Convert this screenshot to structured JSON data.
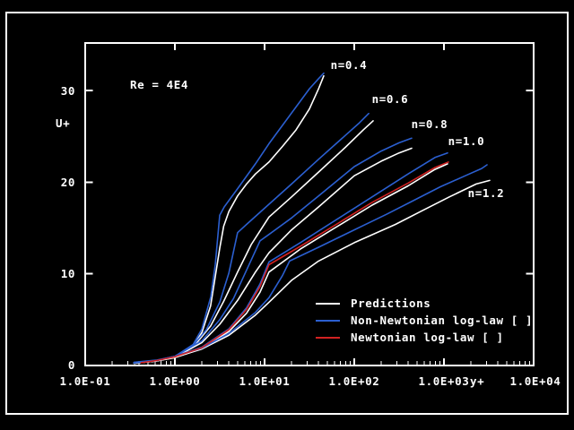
{
  "window": {
    "background": "#000000",
    "border_color": "#ffffff"
  },
  "colors": {
    "background": "#000000",
    "frame": "#ffffff",
    "text": "#ffffff",
    "predictions": "#ffffff",
    "non_newtonian": "#2b5fd0",
    "newtonian": "#d22222"
  },
  "chart_data": {
    "type": "line",
    "title": "Re = 4E4",
    "xlabel": "y+",
    "ylabel": "U+",
    "x_scale": "log",
    "grid": false,
    "xlim": [
      0.1,
      10000
    ],
    "ylim": [
      0,
      35.2
    ],
    "legend_position": "lower-right-inside",
    "x_ticks": [
      {
        "label": "1.0E-01",
        "value": 0.1
      },
      {
        "label": "1.0E+00",
        "value": 1
      },
      {
        "label": "1.0E+01",
        "value": 10
      },
      {
        "label": "1.0E+02",
        "value": 100
      },
      {
        "label": "1.0E+03",
        "value": 1000
      },
      {
        "label": "1.0E+04",
        "value": 10000
      }
    ],
    "y_ticks": [
      {
        "label": "0",
        "value": 0
      },
      {
        "label": "10",
        "value": 10
      },
      {
        "label": "20",
        "value": 20
      },
      {
        "label": "30",
        "value": 30
      }
    ],
    "legend": {
      "entries": [
        {
          "label": "Predictions",
          "color_key": "predictions"
        },
        {
          "label": "Non-Newtonian log-law [ ]",
          "color_key": "non_newtonian"
        },
        {
          "label": "Newtonian log-law [ ]",
          "color_key": "newtonian"
        }
      ]
    },
    "curve_labels": [
      {
        "text": "n=0.4",
        "y_plus": 87,
        "u_plus": 32.7
      },
      {
        "text": "n=0.6",
        "y_plus": 251,
        "u_plus": 29.0
      },
      {
        "text": "n=0.8",
        "y_plus": 692,
        "u_plus": 26.3
      },
      {
        "text": "n=1.0",
        "y_plus": 1778,
        "u_plus": 24.4
      },
      {
        "text": "n=1.2",
        "y_plus": 2951,
        "u_plus": 18.8
      }
    ],
    "series": [
      {
        "name": "prediction-n0.4",
        "legend": "Predictions",
        "color_key": "predictions",
        "n": 0.4,
        "points": [
          [
            0.35,
            0.25
          ],
          [
            0.63,
            0.5
          ],
          [
            1,
            0.9
          ],
          [
            1.6,
            2.1
          ],
          [
            2,
            3.6
          ],
          [
            2.5,
            6.5
          ],
          [
            2.8,
            9.5
          ],
          [
            3.16,
            12.8
          ],
          [
            3.5,
            15.2
          ],
          [
            4,
            16.8
          ],
          [
            5,
            18.5
          ],
          [
            6.3,
            19.8
          ],
          [
            7.9,
            20.9
          ],
          [
            11.2,
            22.2
          ],
          [
            15.8,
            23.9
          ],
          [
            22.4,
            25.7
          ],
          [
            31.6,
            28.0
          ],
          [
            40,
            30.2
          ],
          [
            45.7,
            31.6
          ]
        ]
      },
      {
        "name": "prediction-n0.6",
        "legend": "Predictions",
        "color_key": "predictions",
        "n": 0.6,
        "points": [
          [
            0.35,
            0.25
          ],
          [
            0.63,
            0.5
          ],
          [
            1,
            0.9
          ],
          [
            1.6,
            2.0
          ],
          [
            2.5,
            4.3
          ],
          [
            3.5,
            7.0
          ],
          [
            5,
            10.2
          ],
          [
            7.1,
            13.2
          ],
          [
            11.2,
            16.2
          ],
          [
            20,
            18.4
          ],
          [
            40,
            21.1
          ],
          [
            79.4,
            23.8
          ],
          [
            126,
            25.7
          ],
          [
            162,
            26.7
          ]
        ]
      },
      {
        "name": "prediction-n0.8",
        "legend": "Predictions",
        "color_key": "predictions",
        "n": 0.8,
        "points": [
          [
            0.35,
            0.25
          ],
          [
            0.63,
            0.5
          ],
          [
            1,
            0.9
          ],
          [
            2,
            2.5
          ],
          [
            3.16,
            4.5
          ],
          [
            5,
            7.1
          ],
          [
            7.9,
            10.2
          ],
          [
            11.2,
            12.3
          ],
          [
            20,
            14.8
          ],
          [
            40,
            17.3
          ],
          [
            100,
            20.7
          ],
          [
            200,
            22.3
          ],
          [
            316,
            23.2
          ],
          [
            437,
            23.7
          ]
        ]
      },
      {
        "name": "prediction-n1.0",
        "legend": "Predictions",
        "color_key": "predictions",
        "n": 1.0,
        "points": [
          [
            0.35,
            0.25
          ],
          [
            0.63,
            0.5
          ],
          [
            1,
            0.85
          ],
          [
            2,
            1.85
          ],
          [
            4,
            3.7
          ],
          [
            6.3,
            5.7
          ],
          [
            8.9,
            8.0
          ],
          [
            11.2,
            10.2
          ],
          [
            25,
            12.7
          ],
          [
            63,
            15.1
          ],
          [
            158,
            17.5
          ],
          [
            398,
            19.6
          ],
          [
            794,
            21.4
          ],
          [
            1096,
            22.0
          ]
        ]
      },
      {
        "name": "prediction-n1.2",
        "legend": "Predictions",
        "color_key": "predictions",
        "n": 1.2,
        "points": [
          [
            0.35,
            0.25
          ],
          [
            0.63,
            0.5
          ],
          [
            1,
            0.9
          ],
          [
            2,
            1.8
          ],
          [
            4,
            3.3
          ],
          [
            7.9,
            5.5
          ],
          [
            11.2,
            6.9
          ],
          [
            20,
            9.3
          ],
          [
            40,
            11.4
          ],
          [
            100,
            13.4
          ],
          [
            288,
            15.4
          ],
          [
            575,
            16.9
          ],
          [
            1148,
            18.4
          ],
          [
            2290,
            19.8
          ],
          [
            3236,
            20.2
          ]
        ]
      },
      {
        "name": "loglaw-n0.4",
        "legend": "Non-Newtonian log-law [ ]",
        "color_key": "non_newtonian",
        "n": 0.4,
        "points": [
          [
            0.35,
            0.3
          ],
          [
            0.63,
            0.55
          ],
          [
            1,
            1.0
          ],
          [
            1.6,
            2.3
          ],
          [
            2,
            4.0
          ],
          [
            2.51,
            7.5
          ],
          [
            2.82,
            11.0
          ],
          [
            3.16,
            16.4
          ],
          [
            3.55,
            17.3
          ],
          [
            5,
            19.3
          ],
          [
            7.9,
            22.0
          ],
          [
            11.2,
            24.2
          ],
          [
            15.8,
            26.2
          ],
          [
            22.4,
            28.2
          ],
          [
            31.6,
            30.2
          ],
          [
            40,
            31.3
          ],
          [
            45.7,
            31.9
          ]
        ]
      },
      {
        "name": "loglaw-n0.6",
        "legend": "Non-Newtonian log-law [ ]",
        "color_key": "non_newtonian",
        "n": 0.6,
        "points": [
          [
            0.35,
            0.3
          ],
          [
            0.63,
            0.55
          ],
          [
            1,
            1.0
          ],
          [
            1.6,
            2.2
          ],
          [
            2.24,
            3.9
          ],
          [
            3.16,
            6.9
          ],
          [
            4,
            10.1
          ],
          [
            5,
            14.5
          ],
          [
            6.3,
            15.4
          ],
          [
            11.2,
            17.6
          ],
          [
            20,
            19.8
          ],
          [
            40,
            22.5
          ],
          [
            79.4,
            25.1
          ],
          [
            112,
            26.4
          ],
          [
            145,
            27.5
          ]
        ]
      },
      {
        "name": "loglaw-n0.8",
        "legend": "Non-Newtonian log-law [ ]",
        "color_key": "non_newtonian",
        "n": 0.8,
        "points": [
          [
            0.35,
            0.3
          ],
          [
            0.63,
            0.55
          ],
          [
            1,
            1.0
          ],
          [
            2,
            2.7
          ],
          [
            3.16,
            5.0
          ],
          [
            4.5,
            7.3
          ],
          [
            6.3,
            10.4
          ],
          [
            8.9,
            13.6
          ],
          [
            11.2,
            14.3
          ],
          [
            20,
            16.1
          ],
          [
            40,
            18.5
          ],
          [
            100,
            21.7
          ],
          [
            200,
            23.4
          ],
          [
            316,
            24.3
          ],
          [
            437,
            24.8
          ]
        ]
      },
      {
        "name": "loglaw-n1.0",
        "legend": "Non-Newtonian log-law [ ]",
        "color_key": "non_newtonian",
        "n": 1.0,
        "points": [
          [
            0.35,
            0.35
          ],
          [
            0.63,
            0.6
          ],
          [
            1,
            1.0
          ],
          [
            2,
            2.0
          ],
          [
            4,
            4.0
          ],
          [
            6.3,
            6.3
          ],
          [
            8.9,
            8.9
          ],
          [
            11.2,
            11.3
          ],
          [
            25,
            13.4
          ],
          [
            63,
            15.9
          ],
          [
            158,
            18.4
          ],
          [
            398,
            20.9
          ],
          [
            794,
            22.7
          ],
          [
            1096,
            23.2
          ]
        ]
      },
      {
        "name": "loglaw-n1.2",
        "legend": "Non-Newtonian log-law [ ]",
        "color_key": "non_newtonian",
        "n": 1.2,
        "points": [
          [
            0.35,
            0.3
          ],
          [
            0.63,
            0.55
          ],
          [
            1,
            1.0
          ],
          [
            2,
            1.9
          ],
          [
            4,
            3.5
          ],
          [
            7.9,
            5.8
          ],
          [
            11.2,
            7.4
          ],
          [
            15.8,
            9.8
          ],
          [
            19,
            11.4
          ],
          [
            40,
            12.9
          ],
          [
            100,
            14.8
          ],
          [
            229,
            16.5
          ],
          [
            457,
            18.0
          ],
          [
            912,
            19.5
          ],
          [
            1820,
            20.8
          ],
          [
            2630,
            21.5
          ],
          [
            3020,
            21.9
          ]
        ]
      },
      {
        "name": "newtonian-loglaw",
        "legend": "Newtonian log-law [ ]",
        "color_key": "newtonian",
        "n": 1.0,
        "points": [
          [
            0.42,
            0.3
          ],
          [
            0.63,
            0.55
          ],
          [
            1,
            0.95
          ],
          [
            2,
            1.95
          ],
          [
            4,
            3.9
          ],
          [
            6.3,
            6.1
          ],
          [
            8.9,
            8.6
          ],
          [
            11.2,
            11.0
          ],
          [
            25,
            13.0
          ],
          [
            63,
            15.4
          ],
          [
            158,
            17.8
          ],
          [
            398,
            19.9
          ],
          [
            794,
            21.6
          ],
          [
            1122,
            22.2
          ]
        ]
      }
    ]
  }
}
